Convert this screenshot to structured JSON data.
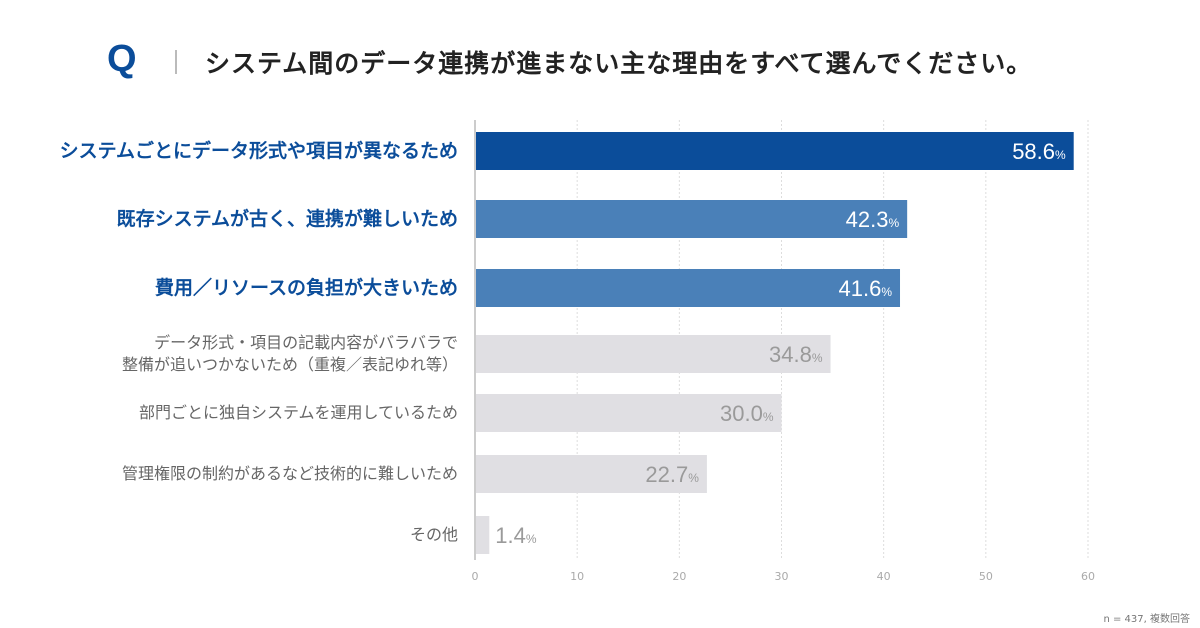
{
  "question_mark": "Q",
  "title": "システム間のデータ連携が進まない主な理由をすべて選んでください。",
  "note": "n = 437, 複数回答",
  "colors": {
    "primary": "#0b4d9a",
    "secondary": "#4a80b8",
    "other": "#e0dfe3",
    "axis_text": "#aaa"
  },
  "chart_data": {
    "type": "bar",
    "orientation": "horizontal",
    "categories": [
      "システムごとにデータ形式や項目が異なるため",
      "既存システムが古く、連携が難しいため",
      "費用／リソースの負担が大きいため",
      "データ形式・項目の記載内容がバラバラで\n整備が追いつかないため（重複／表記ゆれ等）",
      "部門ごとに独自システムを運用しているため",
      "管理権限の制約があるなど技術的に難しいため",
      "その他"
    ],
    "values": [
      58.6,
      42.3,
      41.6,
      34.8,
      30.0,
      22.7,
      1.4
    ],
    "value_labels": [
      "58.6",
      "42.3",
      "41.6",
      "34.8",
      "30.0",
      "22.7",
      "1.4"
    ],
    "unit": "%",
    "highlight": [
      0,
      1,
      1,
      2,
      2,
      2,
      2
    ],
    "xlim": [
      0,
      60
    ],
    "xticks": [
      "0",
      "10",
      "20",
      "30",
      "40",
      "50",
      "60"
    ],
    "grid": true
  }
}
